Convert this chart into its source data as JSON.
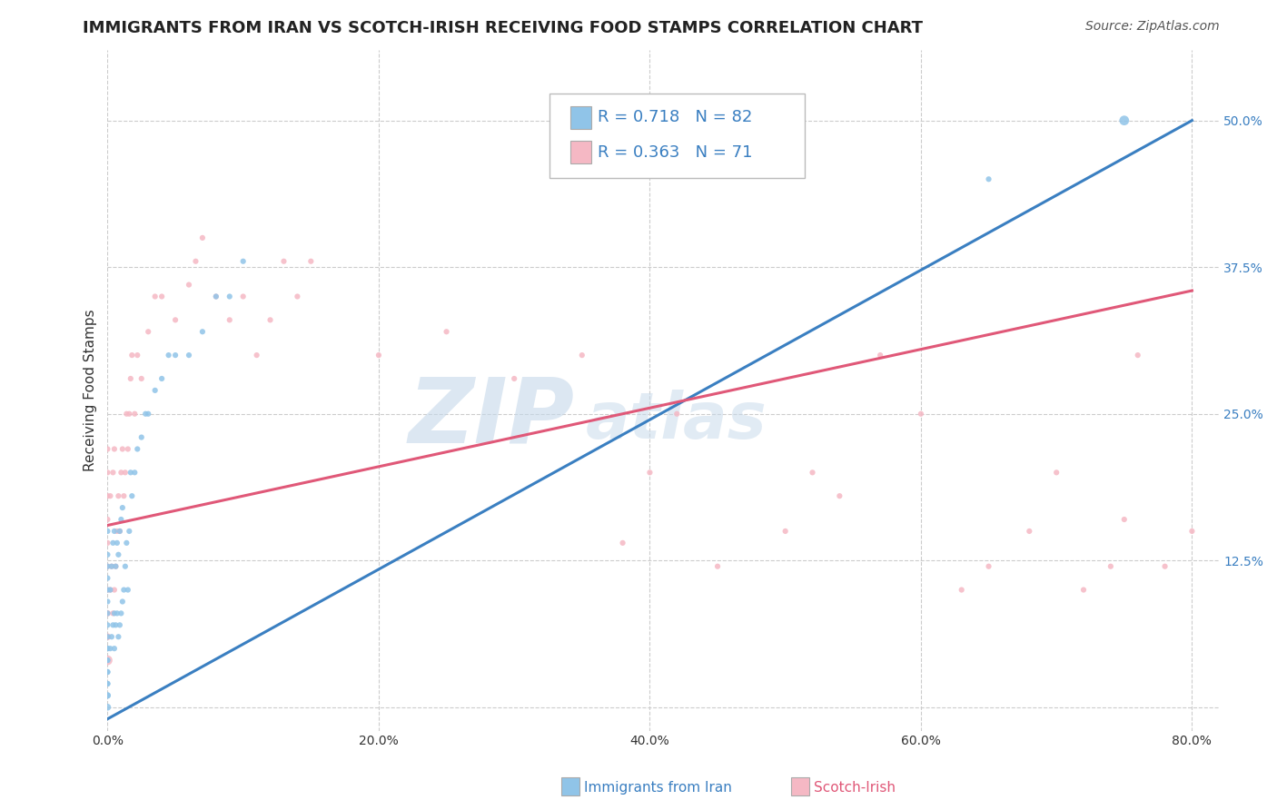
{
  "title": "IMMIGRANTS FROM IRAN VS SCOTCH-IRISH RECEIVING FOOD STAMPS CORRELATION CHART",
  "source": "Source: ZipAtlas.com",
  "ylabel": "Receiving Food Stamps",
  "xlabel_blue": "Immigrants from Iran",
  "xlabel_pink": "Scotch-Irish",
  "xlim": [
    0.0,
    0.82
  ],
  "ylim": [
    -0.02,
    0.56
  ],
  "xticks": [
    0.0,
    0.2,
    0.4,
    0.6,
    0.8
  ],
  "xtick_labels": [
    "0.0%",
    "20.0%",
    "40.0%",
    "60.0%",
    "80.0%"
  ],
  "yticks": [
    0.0,
    0.125,
    0.25,
    0.375,
    0.5
  ],
  "ytick_labels": [
    "",
    "12.5%",
    "25.0%",
    "37.5%",
    "50.0%"
  ],
  "legend_R_blue": "0.718",
  "legend_N_blue": "82",
  "legend_R_pink": "0.363",
  "legend_N_pink": "71",
  "blue_color": "#90c4e8",
  "pink_color": "#f5b8c4",
  "trendline_blue_color": "#3a7fc1",
  "trendline_pink_color": "#e05878",
  "watermark_zip": "ZIP",
  "watermark_atlas": "atlas",
  "title_fontsize": 13,
  "axis_label_fontsize": 11,
  "tick_fontsize": 10,
  "background_color": "#ffffff",
  "grid_color": "#cccccc",
  "trendline_blue": {
    "x_start": 0.0,
    "y_start": -0.01,
    "x_end": 0.8,
    "y_end": 0.5
  },
  "trendline_pink": {
    "x_start": 0.0,
    "y_start": 0.155,
    "x_end": 0.8,
    "y_end": 0.355
  },
  "blue_scatter_x": [
    0.0,
    0.0,
    0.0,
    0.0,
    0.0,
    0.0,
    0.0,
    0.0,
    0.0,
    0.0,
    0.0,
    0.0,
    0.0,
    0.0,
    0.0,
    0.0,
    0.0,
    0.0,
    0.0,
    0.0,
    0.002,
    0.002,
    0.003,
    0.003,
    0.004,
    0.004,
    0.005,
    0.005,
    0.005,
    0.006,
    0.006,
    0.007,
    0.007,
    0.008,
    0.008,
    0.009,
    0.009,
    0.01,
    0.01,
    0.011,
    0.011,
    0.012,
    0.013,
    0.014,
    0.015,
    0.016,
    0.017,
    0.018,
    0.02,
    0.022,
    0.025,
    0.028,
    0.03,
    0.035,
    0.04,
    0.045,
    0.05,
    0.06,
    0.07,
    0.08,
    0.09,
    0.1,
    0.65,
    0.75
  ],
  "blue_scatter_y": [
    0.0,
    0.01,
    0.01,
    0.02,
    0.02,
    0.03,
    0.03,
    0.04,
    0.04,
    0.05,
    0.05,
    0.06,
    0.07,
    0.08,
    0.09,
    0.1,
    0.11,
    0.12,
    0.13,
    0.15,
    0.05,
    0.1,
    0.06,
    0.12,
    0.07,
    0.14,
    0.05,
    0.08,
    0.15,
    0.07,
    0.12,
    0.08,
    0.14,
    0.06,
    0.13,
    0.07,
    0.15,
    0.08,
    0.16,
    0.09,
    0.17,
    0.1,
    0.12,
    0.14,
    0.1,
    0.15,
    0.2,
    0.18,
    0.2,
    0.22,
    0.23,
    0.25,
    0.25,
    0.27,
    0.28,
    0.3,
    0.3,
    0.3,
    0.32,
    0.35,
    0.35,
    0.38,
    0.45,
    0.5
  ],
  "blue_scatter_sizes": [
    30,
    25,
    25,
    20,
    20,
    20,
    20,
    20,
    20,
    20,
    20,
    20,
    20,
    20,
    20,
    20,
    20,
    20,
    20,
    20,
    20,
    20,
    20,
    20,
    20,
    20,
    20,
    20,
    20,
    20,
    20,
    20,
    20,
    20,
    20,
    20,
    20,
    20,
    20,
    20,
    20,
    20,
    20,
    20,
    20,
    20,
    20,
    20,
    20,
    20,
    20,
    20,
    20,
    20,
    20,
    20,
    20,
    20,
    20,
    20,
    20,
    20,
    20,
    60
  ],
  "pink_scatter_x": [
    0.0,
    0.0,
    0.0,
    0.0,
    0.0,
    0.0,
    0.0,
    0.0,
    0.0,
    0.0,
    0.002,
    0.002,
    0.003,
    0.004,
    0.004,
    0.005,
    0.005,
    0.006,
    0.007,
    0.008,
    0.009,
    0.01,
    0.011,
    0.012,
    0.013,
    0.014,
    0.015,
    0.016,
    0.017,
    0.018,
    0.02,
    0.022,
    0.025,
    0.03,
    0.035,
    0.04,
    0.05,
    0.06,
    0.065,
    0.07,
    0.08,
    0.09,
    0.1,
    0.11,
    0.12,
    0.13,
    0.14,
    0.15,
    0.2,
    0.25,
    0.3,
    0.35,
    0.38,
    0.4,
    0.42,
    0.45,
    0.5,
    0.52,
    0.54,
    0.57,
    0.6,
    0.63,
    0.65,
    0.68,
    0.7,
    0.72,
    0.74,
    0.75,
    0.76,
    0.78,
    0.8
  ],
  "pink_scatter_y": [
    0.04,
    0.06,
    0.08,
    0.1,
    0.12,
    0.14,
    0.16,
    0.18,
    0.2,
    0.22,
    0.1,
    0.18,
    0.12,
    0.08,
    0.2,
    0.1,
    0.22,
    0.12,
    0.15,
    0.18,
    0.15,
    0.2,
    0.22,
    0.18,
    0.2,
    0.25,
    0.22,
    0.25,
    0.28,
    0.3,
    0.25,
    0.3,
    0.28,
    0.32,
    0.35,
    0.35,
    0.33,
    0.36,
    0.38,
    0.4,
    0.35,
    0.33,
    0.35,
    0.3,
    0.33,
    0.38,
    0.35,
    0.38,
    0.3,
    0.32,
    0.28,
    0.3,
    0.14,
    0.2,
    0.25,
    0.12,
    0.15,
    0.2,
    0.18,
    0.3,
    0.25,
    0.1,
    0.12,
    0.15,
    0.2,
    0.1,
    0.12,
    0.16,
    0.3,
    0.12,
    0.15
  ],
  "pink_scatter_sizes": [
    60,
    30,
    25,
    20,
    20,
    20,
    20,
    20,
    20,
    20,
    20,
    20,
    20,
    20,
    20,
    20,
    20,
    20,
    20,
    20,
    20,
    20,
    20,
    20,
    20,
    20,
    20,
    20,
    20,
    20,
    20,
    20,
    20,
    20,
    20,
    20,
    20,
    20,
    20,
    20,
    20,
    20,
    20,
    20,
    20,
    20,
    20,
    20,
    20,
    20,
    20,
    20,
    20,
    20,
    20,
    20,
    20,
    20,
    20,
    20,
    20,
    20,
    20,
    20,
    20,
    20,
    20,
    20,
    20,
    20,
    20
  ]
}
